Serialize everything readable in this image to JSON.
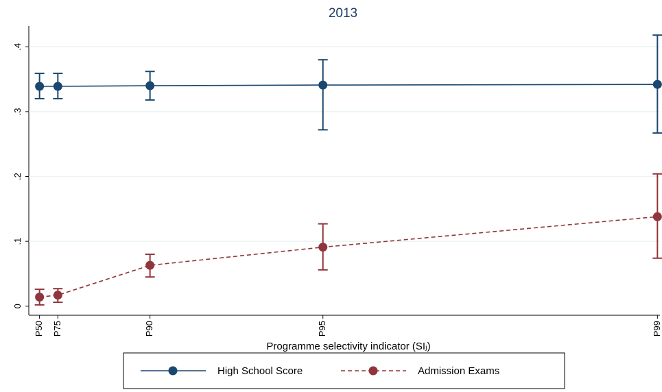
{
  "chart_data": {
    "type": "line",
    "title": "2013",
    "x_label": "Programme selectivity indicator (SIⱼ)",
    "x": [
      0.017,
      0.046,
      0.192,
      0.466,
      0.996
    ],
    "xlim": [
      0,
      1
    ],
    "xticks": [
      {
        "value": 0.017,
        "label": "P50"
      },
      {
        "value": 0.046,
        "label": "P75"
      },
      {
        "value": 0.192,
        "label": "P90"
      },
      {
        "value": 0.466,
        "label": "P95"
      },
      {
        "value": 0.996,
        "label": "P99"
      }
    ],
    "ylim": [
      -0.014,
      0.432
    ],
    "yticks": [
      0,
      {
        "value": 0.1,
        "label": ".1"
      },
      {
        "value": 0.2,
        "label": ".2"
      },
      {
        "value": 0.3,
        "label": ".3"
      },
      {
        "value": 0.4,
        "label": ".4"
      }
    ],
    "grid": true,
    "series": [
      {
        "name": "High School Score",
        "color": "#1a476f",
        "dashed": false,
        "values": [
          0.339,
          0.339,
          0.34,
          0.341,
          0.342
        ],
        "lower": [
          0.32,
          0.32,
          0.318,
          0.272,
          0.267
        ],
        "upper": [
          0.359,
          0.359,
          0.362,
          0.38,
          0.418
        ]
      },
      {
        "name": "Admission Exams",
        "color": "#90353b",
        "dashed": true,
        "values": [
          0.014,
          0.017,
          0.063,
          0.091,
          0.138
        ],
        "lower": [
          0.002,
          0.006,
          0.045,
          0.056,
          0.074
        ],
        "upper": [
          0.026,
          0.027,
          0.08,
          0.127,
          0.204
        ]
      }
    ]
  }
}
